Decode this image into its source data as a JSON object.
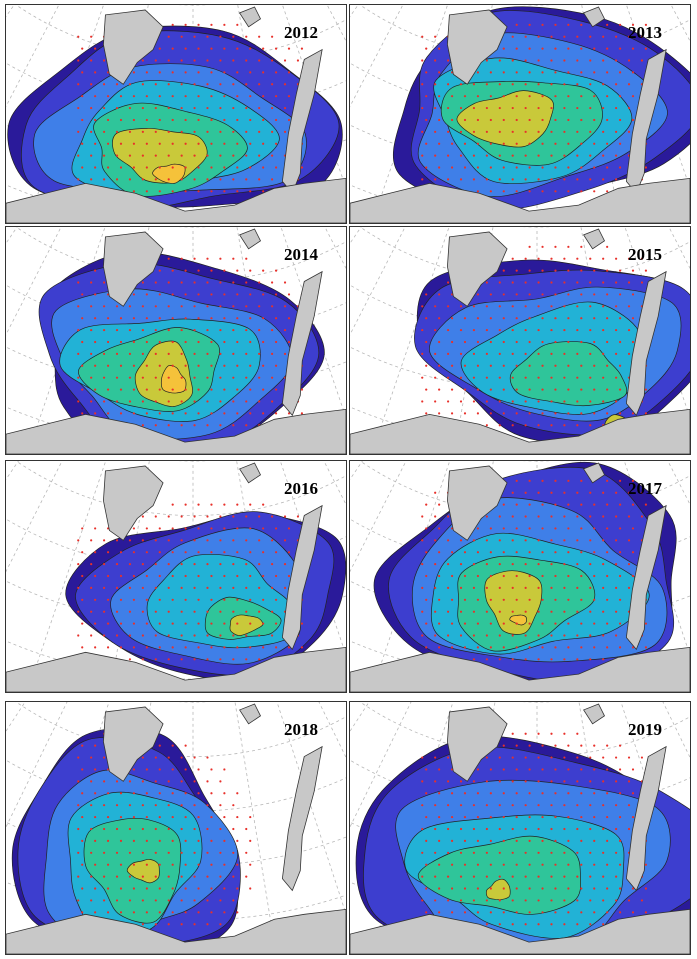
{
  "panels": [
    {
      "year": "2012"
    },
    {
      "year": "2013"
    },
    {
      "year": "2014"
    },
    {
      "year": "2015"
    },
    {
      "year": "2016"
    },
    {
      "year": "2017"
    },
    {
      "year": "2018"
    },
    {
      "year": "2019"
    }
  ],
  "colors": {
    "land": "#c8c8c8",
    "level1": "#2a1a9a",
    "level2": "#3d3ecf",
    "level3": "#3f7fe8",
    "level4": "#22b2d6",
    "level5": "#2fc59a",
    "level6": "#7fcf4a",
    "level7": "#c9c93a",
    "level8": "#f5c23a",
    "stations": "#e8302a",
    "grid": "#b8b8b8"
  }
}
